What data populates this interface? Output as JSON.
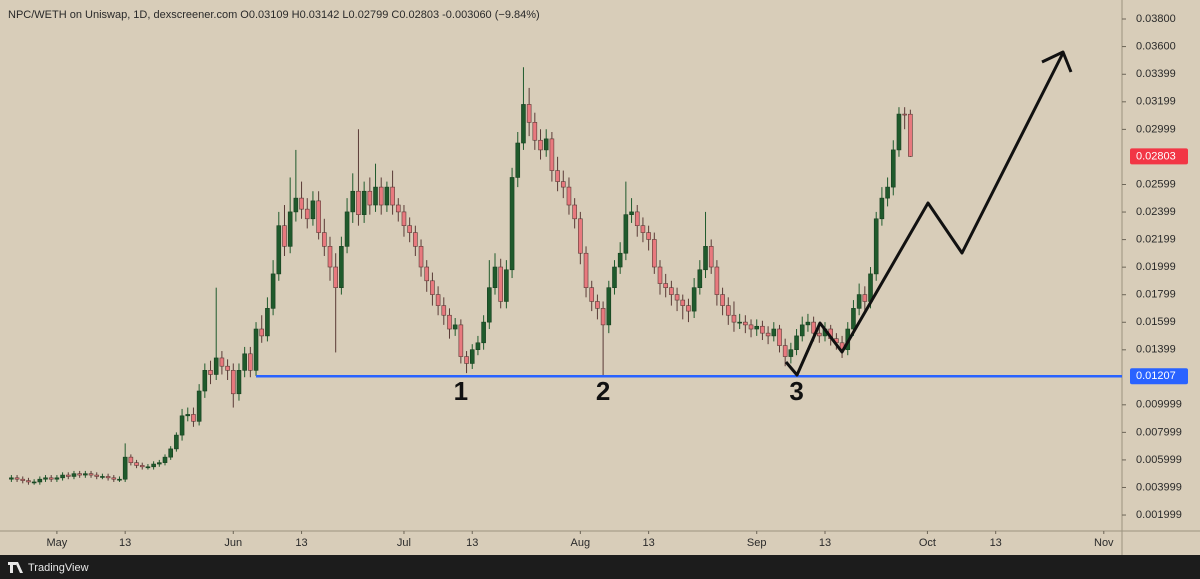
{
  "chart_data": {
    "type": "candlestick",
    "title": "NPC/WETH on Uniswap, 1D, dexscreener.com  O0.03109 H0.03142 L0.02799 C0.02803 -0.003060 (−9.84%)",
    "brand": "TradingView",
    "up_color": "#1f5a2c",
    "down_color": "#e8797e",
    "grid": false,
    "x": [
      -8,
      -7,
      -6,
      -5,
      -4,
      -3,
      -2,
      -1,
      0,
      1,
      2,
      3,
      4,
      5,
      6,
      7,
      8,
      9,
      10,
      11,
      12,
      13,
      14,
      15,
      16,
      17,
      18,
      19,
      20,
      21,
      22,
      23,
      24,
      25,
      26,
      27,
      28,
      29,
      30,
      31,
      32,
      33,
      34,
      35,
      36,
      37,
      38,
      39,
      40,
      41,
      42,
      43,
      44,
      45,
      46,
      47,
      48,
      49,
      50,
      51,
      52,
      53,
      54,
      55,
      56,
      57,
      58,
      59,
      60,
      61,
      62,
      63,
      64,
      65,
      66,
      67,
      68,
      69,
      70,
      71,
      72,
      73,
      74,
      75,
      76,
      77,
      78,
      79,
      80,
      81,
      82,
      83,
      84,
      85,
      86,
      87,
      88,
      89,
      90,
      91,
      92,
      93,
      94,
      95,
      96,
      97,
      98,
      99,
      100,
      101,
      102,
      103,
      104,
      105,
      106,
      107,
      108,
      109,
      110,
      111,
      112,
      113,
      114,
      115,
      116,
      117,
      118,
      119,
      120,
      121,
      122,
      123,
      124,
      125,
      126,
      127,
      128,
      129,
      130,
      131,
      132,
      133,
      134,
      135,
      136,
      137,
      138,
      139,
      140,
      141,
      142,
      143,
      144,
      145,
      146,
      147,
      148,
      149,
      150
    ],
    "open": [
      0.0046,
      0.0047,
      0.0046,
      0.0045,
      0.0044,
      0.0044,
      0.0046,
      0.0047,
      0.0046,
      0.0047,
      0.0049,
      0.0048,
      0.005,
      0.0049,
      0.005,
      0.0049,
      0.0048,
      0.0048,
      0.0047,
      0.0046,
      0.0046,
      0.0062,
      0.0058,
      0.0056,
      0.0055,
      0.0055,
      0.0057,
      0.0058,
      0.0062,
      0.0068,
      0.0078,
      0.0092,
      0.0093,
      0.0088,
      0.011,
      0.0125,
      0.0122,
      0.0134,
      0.0128,
      0.0125,
      0.0108,
      0.0125,
      0.0137,
      0.0125,
      0.0155,
      0.015,
      0.017,
      0.0195,
      0.023,
      0.0215,
      0.024,
      0.025,
      0.0242,
      0.0235,
      0.0248,
      0.0225,
      0.0215,
      0.02,
      0.0185,
      0.0215,
      0.024,
      0.0255,
      0.0238,
      0.0255,
      0.0245,
      0.0258,
      0.0245,
      0.0258,
      0.0245,
      0.024,
      0.023,
      0.0225,
      0.0215,
      0.02,
      0.019,
      0.018,
      0.0172,
      0.0165,
      0.0155,
      0.0158,
      0.0135,
      0.013,
      0.014,
      0.0145,
      0.016,
      0.0185,
      0.02,
      0.0175,
      0.0198,
      0.0265,
      0.029,
      0.0318,
      0.0305,
      0.0292,
      0.0285,
      0.0293,
      0.027,
      0.0262,
      0.0258,
      0.0245,
      0.0235,
      0.021,
      0.0185,
      0.0175,
      0.017,
      0.0158,
      0.0185,
      0.02,
      0.021,
      0.0238,
      0.024,
      0.023,
      0.0225,
      0.022,
      0.02,
      0.0188,
      0.0185,
      0.018,
      0.0176,
      0.0172,
      0.0168,
      0.0185,
      0.0198,
      0.0215,
      0.02,
      0.018,
      0.0172,
      0.0165,
      0.016,
      0.016,
      0.0158,
      0.0155,
      0.0157,
      0.0152,
      0.015,
      0.0155,
      0.0143,
      0.0135,
      0.014,
      0.015,
      0.0158,
      0.016,
      0.0152,
      0.015,
      0.0155,
      0.0148,
      0.0145,
      0.014,
      0.0155,
      0.017,
      0.018,
      0.0175,
      0.0195,
      0.0235,
      0.025,
      0.0258,
      0.0285,
      0.0311,
      0.03109
    ],
    "high": [
      0.0049,
      0.0049,
      0.0048,
      0.0047,
      0.0046,
      0.0048,
      0.0049,
      0.0049,
      0.0049,
      0.0051,
      0.0051,
      0.0052,
      0.0052,
      0.0052,
      0.0052,
      0.0051,
      0.005,
      0.005,
      0.0049,
      0.0048,
      0.0072,
      0.0064,
      0.006,
      0.0058,
      0.0057,
      0.0059,
      0.006,
      0.0064,
      0.007,
      0.008,
      0.0097,
      0.0098,
      0.0098,
      0.0115,
      0.013,
      0.0132,
      0.0185,
      0.0139,
      0.0133,
      0.013,
      0.013,
      0.0142,
      0.0142,
      0.016,
      0.0165,
      0.0178,
      0.0205,
      0.024,
      0.0245,
      0.0265,
      0.0285,
      0.0262,
      0.025,
      0.0255,
      0.0255,
      0.0235,
      0.0222,
      0.021,
      0.0222,
      0.025,
      0.0268,
      0.03,
      0.0262,
      0.0265,
      0.0275,
      0.0265,
      0.0262,
      0.027,
      0.025,
      0.0245,
      0.0236,
      0.023,
      0.022,
      0.0205,
      0.0196,
      0.0186,
      0.0178,
      0.017,
      0.0163,
      0.0162,
      0.0139,
      0.0144,
      0.015,
      0.0165,
      0.0205,
      0.021,
      0.0206,
      0.0205,
      0.0272,
      0.0298,
      0.0345,
      0.033,
      0.0312,
      0.03,
      0.03,
      0.0298,
      0.028,
      0.027,
      0.0265,
      0.025,
      0.024,
      0.0215,
      0.019,
      0.018,
      0.0175,
      0.019,
      0.0205,
      0.0218,
      0.0262,
      0.025,
      0.0245,
      0.0236,
      0.023,
      0.0225,
      0.0205,
      0.0195,
      0.019,
      0.0185,
      0.018,
      0.0177,
      0.0192,
      0.0205,
      0.024,
      0.022,
      0.0205,
      0.0185,
      0.0178,
      0.0175,
      0.0166,
      0.0165,
      0.0162,
      0.0162,
      0.0161,
      0.0157,
      0.016,
      0.0158,
      0.0148,
      0.0145,
      0.0155,
      0.0164,
      0.0166,
      0.0164,
      0.0157,
      0.016,
      0.0158,
      0.0152,
      0.015,
      0.016,
      0.0176,
      0.0188,
      0.0186,
      0.02,
      0.024,
      0.0258,
      0.0265,
      0.0292,
      0.0316,
      0.0316,
      0.03142
    ],
    "low": [
      0.0044,
      0.0044,
      0.0043,
      0.0042,
      0.0042,
      0.0042,
      0.0044,
      0.0044,
      0.0044,
      0.0045,
      0.0046,
      0.0046,
      0.0047,
      0.0047,
      0.0047,
      0.0046,
      0.0046,
      0.0045,
      0.0044,
      0.0044,
      0.0044,
      0.0056,
      0.0054,
      0.0053,
      0.0053,
      0.0053,
      0.0055,
      0.0056,
      0.006,
      0.0066,
      0.0074,
      0.0088,
      0.0084,
      0.0085,
      0.0105,
      0.0115,
      0.0118,
      0.0122,
      0.0118,
      0.0098,
      0.0103,
      0.012,
      0.012,
      0.0121,
      0.0145,
      0.0146,
      0.0165,
      0.019,
      0.0208,
      0.021,
      0.0233,
      0.0235,
      0.0228,
      0.023,
      0.022,
      0.0208,
      0.019,
      0.0138,
      0.018,
      0.021,
      0.0232,
      0.023,
      0.0232,
      0.0238,
      0.024,
      0.0238,
      0.024,
      0.0238,
      0.0233,
      0.0222,
      0.0218,
      0.0208,
      0.0193,
      0.0182,
      0.0172,
      0.0165,
      0.0158,
      0.0148,
      0.015,
      0.013,
      0.0123,
      0.0126,
      0.0136,
      0.014,
      0.0155,
      0.018,
      0.017,
      0.017,
      0.0192,
      0.0258,
      0.0285,
      0.0295,
      0.0285,
      0.0278,
      0.028,
      0.0262,
      0.0255,
      0.025,
      0.0238,
      0.0228,
      0.0202,
      0.0178,
      0.0168,
      0.0162,
      0.012,
      0.0152,
      0.018,
      0.0195,
      0.0205,
      0.0232,
      0.0222,
      0.0218,
      0.0212,
      0.0195,
      0.018,
      0.0178,
      0.0172,
      0.0168,
      0.0162,
      0.016,
      0.0163,
      0.018,
      0.0192,
      0.0195,
      0.0172,
      0.0165,
      0.0158,
      0.0153,
      0.0155,
      0.0152,
      0.0149,
      0.015,
      0.0147,
      0.0144,
      0.0146,
      0.0138,
      0.0128,
      0.013,
      0.0136,
      0.0146,
      0.0153,
      0.0146,
      0.0145,
      0.0146,
      0.0143,
      0.014,
      0.0134,
      0.0136,
      0.015,
      0.0165,
      0.0168,
      0.017,
      0.019,
      0.023,
      0.0244,
      0.0252,
      0.028,
      0.03,
      0.02799
    ],
    "close": [
      0.0047,
      0.0046,
      0.0045,
      0.0044,
      0.0044,
      0.0046,
      0.0047,
      0.0046,
      0.0047,
      0.0049,
      0.0048,
      0.005,
      0.0049,
      0.005,
      0.0049,
      0.0048,
      0.0048,
      0.0047,
      0.0046,
      0.0046,
      0.0062,
      0.0058,
      0.0056,
      0.0055,
      0.0055,
      0.0057,
      0.0058,
      0.0062,
      0.0068,
      0.0078,
      0.0092,
      0.0093,
      0.0088,
      0.011,
      0.0125,
      0.0122,
      0.0134,
      0.0128,
      0.0125,
      0.0108,
      0.0125,
      0.0137,
      0.0125,
      0.0155,
      0.015,
      0.017,
      0.0195,
      0.023,
      0.0215,
      0.024,
      0.025,
      0.0242,
      0.0235,
      0.0248,
      0.0225,
      0.0215,
      0.02,
      0.0185,
      0.0215,
      0.024,
      0.0255,
      0.0238,
      0.0255,
      0.0245,
      0.0258,
      0.0245,
      0.0258,
      0.0245,
      0.024,
      0.023,
      0.0225,
      0.0215,
      0.02,
      0.019,
      0.018,
      0.0172,
      0.0165,
      0.0155,
      0.0158,
      0.0135,
      0.013,
      0.014,
      0.0145,
      0.016,
      0.0185,
      0.02,
      0.0175,
      0.0198,
      0.0265,
      0.029,
      0.0318,
      0.0305,
      0.0292,
      0.0285,
      0.0293,
      0.027,
      0.0262,
      0.0258,
      0.0245,
      0.0235,
      0.021,
      0.0185,
      0.0175,
      0.017,
      0.0158,
      0.0185,
      0.02,
      0.021,
      0.0238,
      0.024,
      0.023,
      0.0225,
      0.022,
      0.02,
      0.0188,
      0.0185,
      0.018,
      0.0176,
      0.0172,
      0.0168,
      0.0185,
      0.0198,
      0.0215,
      0.02,
      0.018,
      0.0172,
      0.0165,
      0.016,
      0.016,
      0.0158,
      0.0155,
      0.0157,
      0.0152,
      0.015,
      0.0155,
      0.0143,
      0.0135,
      0.014,
      0.015,
      0.0158,
      0.016,
      0.0152,
      0.015,
      0.0155,
      0.0148,
      0.0145,
      0.014,
      0.0155,
      0.017,
      0.018,
      0.0175,
      0.0195,
      0.0235,
      0.025,
      0.0258,
      0.0285,
      0.0311,
      0.03109,
      0.02803
    ],
    "xlim": [
      -10,
      187.2
    ],
    "ylim": [
      0.00084,
      0.03938
    ],
    "xticks": [
      {
        "value": 0,
        "label": "May"
      },
      {
        "value": 12,
        "label": "13"
      },
      {
        "value": 31,
        "label": "Jun"
      },
      {
        "value": 43,
        "label": "13"
      },
      {
        "value": 61,
        "label": "Jul"
      },
      {
        "value": 73,
        "label": "13"
      },
      {
        "value": 92,
        "label": "Aug"
      },
      {
        "value": 104,
        "label": "13"
      },
      {
        "value": 123,
        "label": "Sep"
      },
      {
        "value": 135,
        "label": "13"
      },
      {
        "value": 153,
        "label": "Oct"
      },
      {
        "value": 165,
        "label": "13"
      },
      {
        "value": 184,
        "label": "Nov"
      }
    ],
    "yticks": [
      {
        "value": 0.038,
        "label": "0.03800"
      },
      {
        "value": 0.036,
        "label": "0.03600"
      },
      {
        "value": 0.03399,
        "label": "0.03399"
      },
      {
        "value": 0.03199,
        "label": "0.03199"
      },
      {
        "value": 0.02999,
        "label": "0.02999"
      },
      {
        "value": 0.02599,
        "label": "0.02599"
      },
      {
        "value": 0.02399,
        "label": "0.02399"
      },
      {
        "value": 0.02199,
        "label": "0.02199"
      },
      {
        "value": 0.01999,
        "label": "0.01999"
      },
      {
        "value": 0.01799,
        "label": "0.01799"
      },
      {
        "value": 0.01599,
        "label": "0.01599"
      },
      {
        "value": 0.01399,
        "label": "0.01399"
      },
      {
        "value": 0.009999,
        "label": "0.009999"
      },
      {
        "value": 0.007999,
        "label": "0.007999"
      },
      {
        "value": 0.005999,
        "label": "0.005999"
      },
      {
        "value": 0.003999,
        "label": "0.003999"
      },
      {
        "value": 0.001999,
        "label": "0.001999"
      }
    ],
    "last_price": {
      "value": 0.02803,
      "label": "0.02803",
      "color": "#f23645"
    },
    "hline": {
      "value": 0.01207,
      "label": "0.01207",
      "color": "#2962ff",
      "from_x": 35
    },
    "annotations": [
      {
        "text": "1",
        "x": 71
      },
      {
        "text": "2",
        "x": 96
      },
      {
        "text": "3",
        "x": 130
      }
    ]
  }
}
